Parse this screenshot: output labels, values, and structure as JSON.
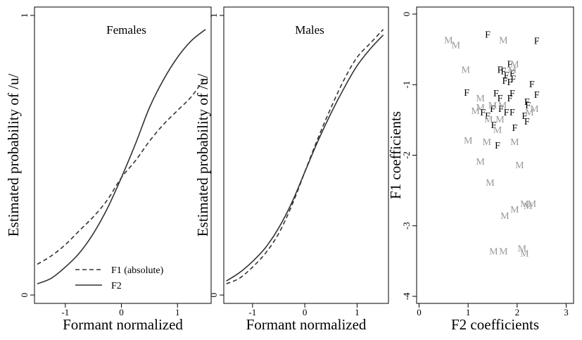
{
  "chart_data": [
    {
      "type": "line",
      "title": "Females",
      "xlabel": "Formant normalized",
      "ylabel": "Estimated probability of /u/",
      "xlim": [
        -1.55,
        1.6
      ],
      "ylim": [
        -0.03,
        1.03
      ],
      "xticks": [
        -1,
        0,
        1
      ],
      "yticks": [
        0,
        1
      ],
      "legend": {
        "position": "bottom-left",
        "entries": [
          {
            "label": "F1 (absolute)",
            "style": "dashed"
          },
          {
            "label": "F2",
            "style": "solid"
          }
        ]
      },
      "series": [
        {
          "name": "F1 (absolute)",
          "style": "dashed",
          "x": [
            -1.5,
            -1.25,
            -1.0,
            -0.75,
            -0.5,
            -0.25,
            0.0,
            0.25,
            0.5,
            0.75,
            1.0,
            1.25,
            1.5
          ],
          "y": [
            0.11,
            0.14,
            0.18,
            0.23,
            0.28,
            0.34,
            0.42,
            0.48,
            0.55,
            0.61,
            0.66,
            0.71,
            0.78
          ]
        },
        {
          "name": "F2",
          "style": "solid",
          "x": [
            -1.5,
            -1.25,
            -1.0,
            -0.75,
            -0.5,
            -0.25,
            0.0,
            0.25,
            0.5,
            0.75,
            1.0,
            1.25,
            1.5
          ],
          "y": [
            0.04,
            0.06,
            0.1,
            0.15,
            0.22,
            0.31,
            0.42,
            0.54,
            0.67,
            0.77,
            0.85,
            0.91,
            0.95
          ]
        }
      ]
    },
    {
      "type": "line",
      "title": "Males",
      "xlabel": "Formant normalized",
      "ylabel": "Estimated probability of /u/",
      "xlim": [
        -1.55,
        1.6
      ],
      "ylim": [
        -0.03,
        1.03
      ],
      "xticks": [
        -1,
        0,
        1
      ],
      "yticks": [
        0,
        1
      ],
      "series": [
        {
          "name": "F1 (absolute)",
          "style": "dashed",
          "x": [
            -1.5,
            -1.25,
            -1.0,
            -0.75,
            -0.5,
            -0.25,
            0.0,
            0.25,
            0.5,
            0.75,
            1.0,
            1.25,
            1.5
          ],
          "y": [
            0.04,
            0.06,
            0.1,
            0.15,
            0.22,
            0.32,
            0.44,
            0.56,
            0.67,
            0.77,
            0.85,
            0.9,
            0.95
          ]
        },
        {
          "name": "F2",
          "style": "solid",
          "x": [
            -1.5,
            -1.25,
            -1.0,
            -0.75,
            -0.5,
            -0.25,
            0.0,
            0.25,
            0.5,
            0.75,
            1.0,
            1.25,
            1.5
          ],
          "y": [
            0.05,
            0.08,
            0.12,
            0.17,
            0.24,
            0.33,
            0.44,
            0.55,
            0.65,
            0.74,
            0.82,
            0.88,
            0.93
          ]
        }
      ]
    },
    {
      "type": "scatter",
      "xlabel": "F2 coefficients",
      "ylabel": "F1 coefficients",
      "xlim": [
        -0.05,
        3.15
      ],
      "ylim": [
        -4.1,
        0.1
      ],
      "xticks": [
        0,
        1,
        2,
        3
      ],
      "yticks": [
        0,
        -1,
        -2,
        -3,
        -4
      ],
      "colors": {
        "F": "#000000",
        "M": "#999999"
      },
      "series": [
        {
          "name": "F",
          "marker": "F",
          "points": [
            [
              1.4,
              -0.3
            ],
            [
              2.4,
              -0.39
            ],
            [
              1.85,
              -0.72
            ],
            [
              1.65,
              -0.8
            ],
            [
              1.72,
              -0.82
            ],
            [
              1.9,
              -0.85
            ],
            [
              1.78,
              -0.88
            ],
            [
              1.92,
              -0.93
            ],
            [
              1.75,
              -0.95
            ],
            [
              1.85,
              -0.97
            ],
            [
              2.3,
              -1.0
            ],
            [
              0.97,
              -1.12
            ],
            [
              1.57,
              -1.13
            ],
            [
              1.9,
              -1.13
            ],
            [
              2.4,
              -1.15
            ],
            [
              1.65,
              -1.2
            ],
            [
              1.85,
              -1.2
            ],
            [
              2.2,
              -1.25
            ],
            [
              1.5,
              -1.35
            ],
            [
              1.67,
              -1.35
            ],
            [
              2.22,
              -1.3
            ],
            [
              1.3,
              -1.4
            ],
            [
              1.78,
              -1.4
            ],
            [
              1.9,
              -1.4
            ],
            [
              1.4,
              -1.45
            ],
            [
              2.15,
              -1.45
            ],
            [
              2.2,
              -1.53
            ],
            [
              1.52,
              -1.58
            ],
            [
              1.95,
              -1.62
            ],
            [
              1.6,
              -1.87
            ]
          ]
        },
        {
          "name": "M",
          "marker": "M",
          "points": [
            [
              0.6,
              -0.38
            ],
            [
              0.75,
              -0.45
            ],
            [
              1.72,
              -0.38
            ],
            [
              1.95,
              -0.72
            ],
            [
              0.95,
              -0.8
            ],
            [
              1.9,
              -0.8
            ],
            [
              1.25,
              -1.2
            ],
            [
              1.15,
              -1.38
            ],
            [
              1.25,
              -1.33
            ],
            [
              1.5,
              -1.3
            ],
            [
              1.7,
              -1.3
            ],
            [
              2.35,
              -1.35
            ],
            [
              2.25,
              -1.4
            ],
            [
              1.42,
              -1.5
            ],
            [
              1.65,
              -1.5
            ],
            [
              1.6,
              -1.65
            ],
            [
              1.0,
              -1.8
            ],
            [
              1.38,
              -1.82
            ],
            [
              1.95,
              -1.82
            ],
            [
              1.25,
              -2.1
            ],
            [
              2.05,
              -2.15
            ],
            [
              1.45,
              -2.4
            ],
            [
              1.75,
              -2.87
            ],
            [
              1.95,
              -2.78
            ],
            [
              2.15,
              -2.7
            ],
            [
              2.3,
              -2.7
            ],
            [
              2.22,
              -2.73
            ],
            [
              1.52,
              -3.37
            ],
            [
              1.72,
              -3.37
            ],
            [
              2.1,
              -3.33
            ],
            [
              2.15,
              -3.4
            ]
          ]
        }
      ]
    }
  ]
}
